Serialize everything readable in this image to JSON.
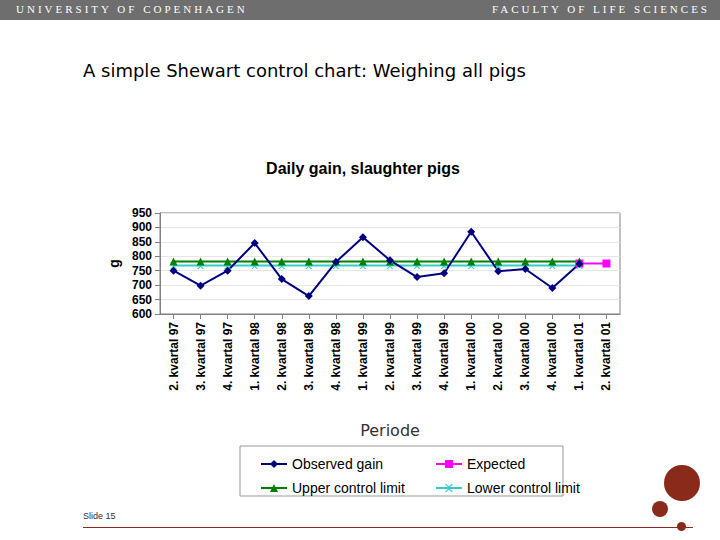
{
  "slide": {
    "header_left": "UNIVERSITY OF COPENHAGEN",
    "header_right": "FACULTY OF LIFE SCIENCES",
    "title": "A simple Shewart control chart: Weighing all pigs",
    "footer": "Slide 15"
  },
  "chart_data": {
    "type": "line",
    "title": "Daily gain, slaughter pigs",
    "y_label": "g",
    "x_label": "Periode",
    "categories": [
      "2. kvartal 97",
      "3. kvartal 97",
      "4. kvartal 97",
      "1. kvartal 98",
      "2. kvartal 98",
      "3. kvartal 98",
      "4. kvartal 98",
      "1. kvartal 99",
      "2. kvartal 99",
      "3. kvartal 99",
      "4. kvartal 99",
      "1. kvartal 00",
      "2. kvartal 00",
      "3. kvartal 00",
      "4. kvartal 00",
      "1. kvartal 01",
      "2. kvartal 01"
    ],
    "series": [
      {
        "name": "Expected",
        "color": "#ff00ff",
        "marker": "square",
        "values": [
          null,
          null,
          null,
          null,
          null,
          null,
          null,
          null,
          null,
          null,
          null,
          null,
          null,
          null,
          null,
          775,
          775
        ]
      },
      {
        "name": "Lower control limit",
        "color": "#33cccc",
        "marker": "x",
        "values": [
          768,
          768,
          768,
          768,
          768,
          768,
          768,
          768,
          768,
          768,
          768,
          768,
          768,
          768,
          768,
          768,
          null
        ]
      },
      {
        "name": "Upper control limit",
        "color": "#008000",
        "marker": "triangle",
        "values": [
          782,
          782,
          782,
          782,
          782,
          782,
          782,
          782,
          782,
          782,
          782,
          782,
          782,
          782,
          782,
          782,
          null
        ]
      },
      {
        "name": "Observed gain",
        "color": "#000080",
        "marker": "diamond",
        "values": [
          750,
          698,
          750,
          846,
          721,
          662,
          780,
          866,
          786,
          728,
          741,
          885,
          748,
          756,
          690,
          774,
          null
        ]
      }
    ],
    "ylim": [
      600,
      950
    ],
    "yticks": [
      600,
      650,
      700,
      750,
      800,
      850,
      900,
      950
    ],
    "grid": true,
    "legend": "bottom"
  }
}
